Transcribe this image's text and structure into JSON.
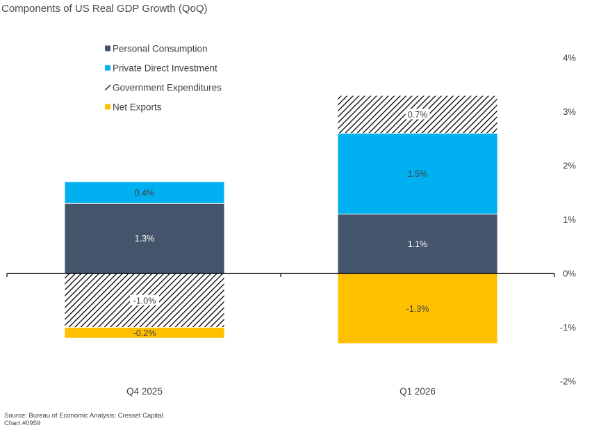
{
  "chart_data": {
    "type": "bar",
    "stacked": true,
    "title": "Components of US Real GDP Growth (QoQ)",
    "categories": [
      "Q4 2025",
      "Q1 2026"
    ],
    "series": [
      {
        "name": "Personal Consumption",
        "values": [
          1.3,
          1.1
        ],
        "labels": [
          "1.3%",
          "1.1%"
        ],
        "color": "#44546a",
        "pattern": "solid"
      },
      {
        "name": "Private Direct Investment",
        "values": [
          0.4,
          1.5
        ],
        "labels": [
          "0.4%",
          "1.5%"
        ],
        "color": "#00b0f0",
        "pattern": "solid"
      },
      {
        "name": "Government Expenditures",
        "values": [
          -1.0,
          0.7
        ],
        "labels": [
          "-1.0%",
          "0.7%"
        ],
        "color": "#000000",
        "pattern": "diagonal-hatch"
      },
      {
        "name": "Net Exports",
        "values": [
          -0.2,
          -1.3
        ],
        "labels": [
          "-0.2%",
          "-1.3%"
        ],
        "color": "#ffc000",
        "pattern": "solid"
      }
    ],
    "yaxis": {
      "position": "right",
      "range": [
        -2,
        4
      ],
      "ticks": [
        4,
        3,
        2,
        1,
        0,
        -1,
        -2
      ],
      "tick_labels": [
        "4%",
        "3%",
        "2%",
        "1%",
        "0%",
        "-1%",
        "-2%"
      ]
    },
    "grid": false,
    "legend_position": "top-left",
    "source": "Source: Bureau of Economic Analysis; Cresset Capital.",
    "chart_id": "Chart #0959"
  }
}
